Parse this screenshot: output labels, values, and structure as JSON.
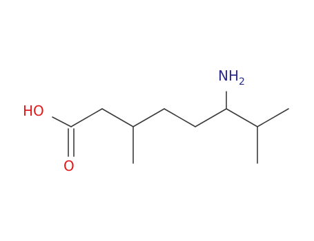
{
  "atoms": [
    {
      "label": "HO"
    },
    {
      "label": "O"
    },
    {
      "label": "NH",
      "subscript": "2"
    }
  ]
}
